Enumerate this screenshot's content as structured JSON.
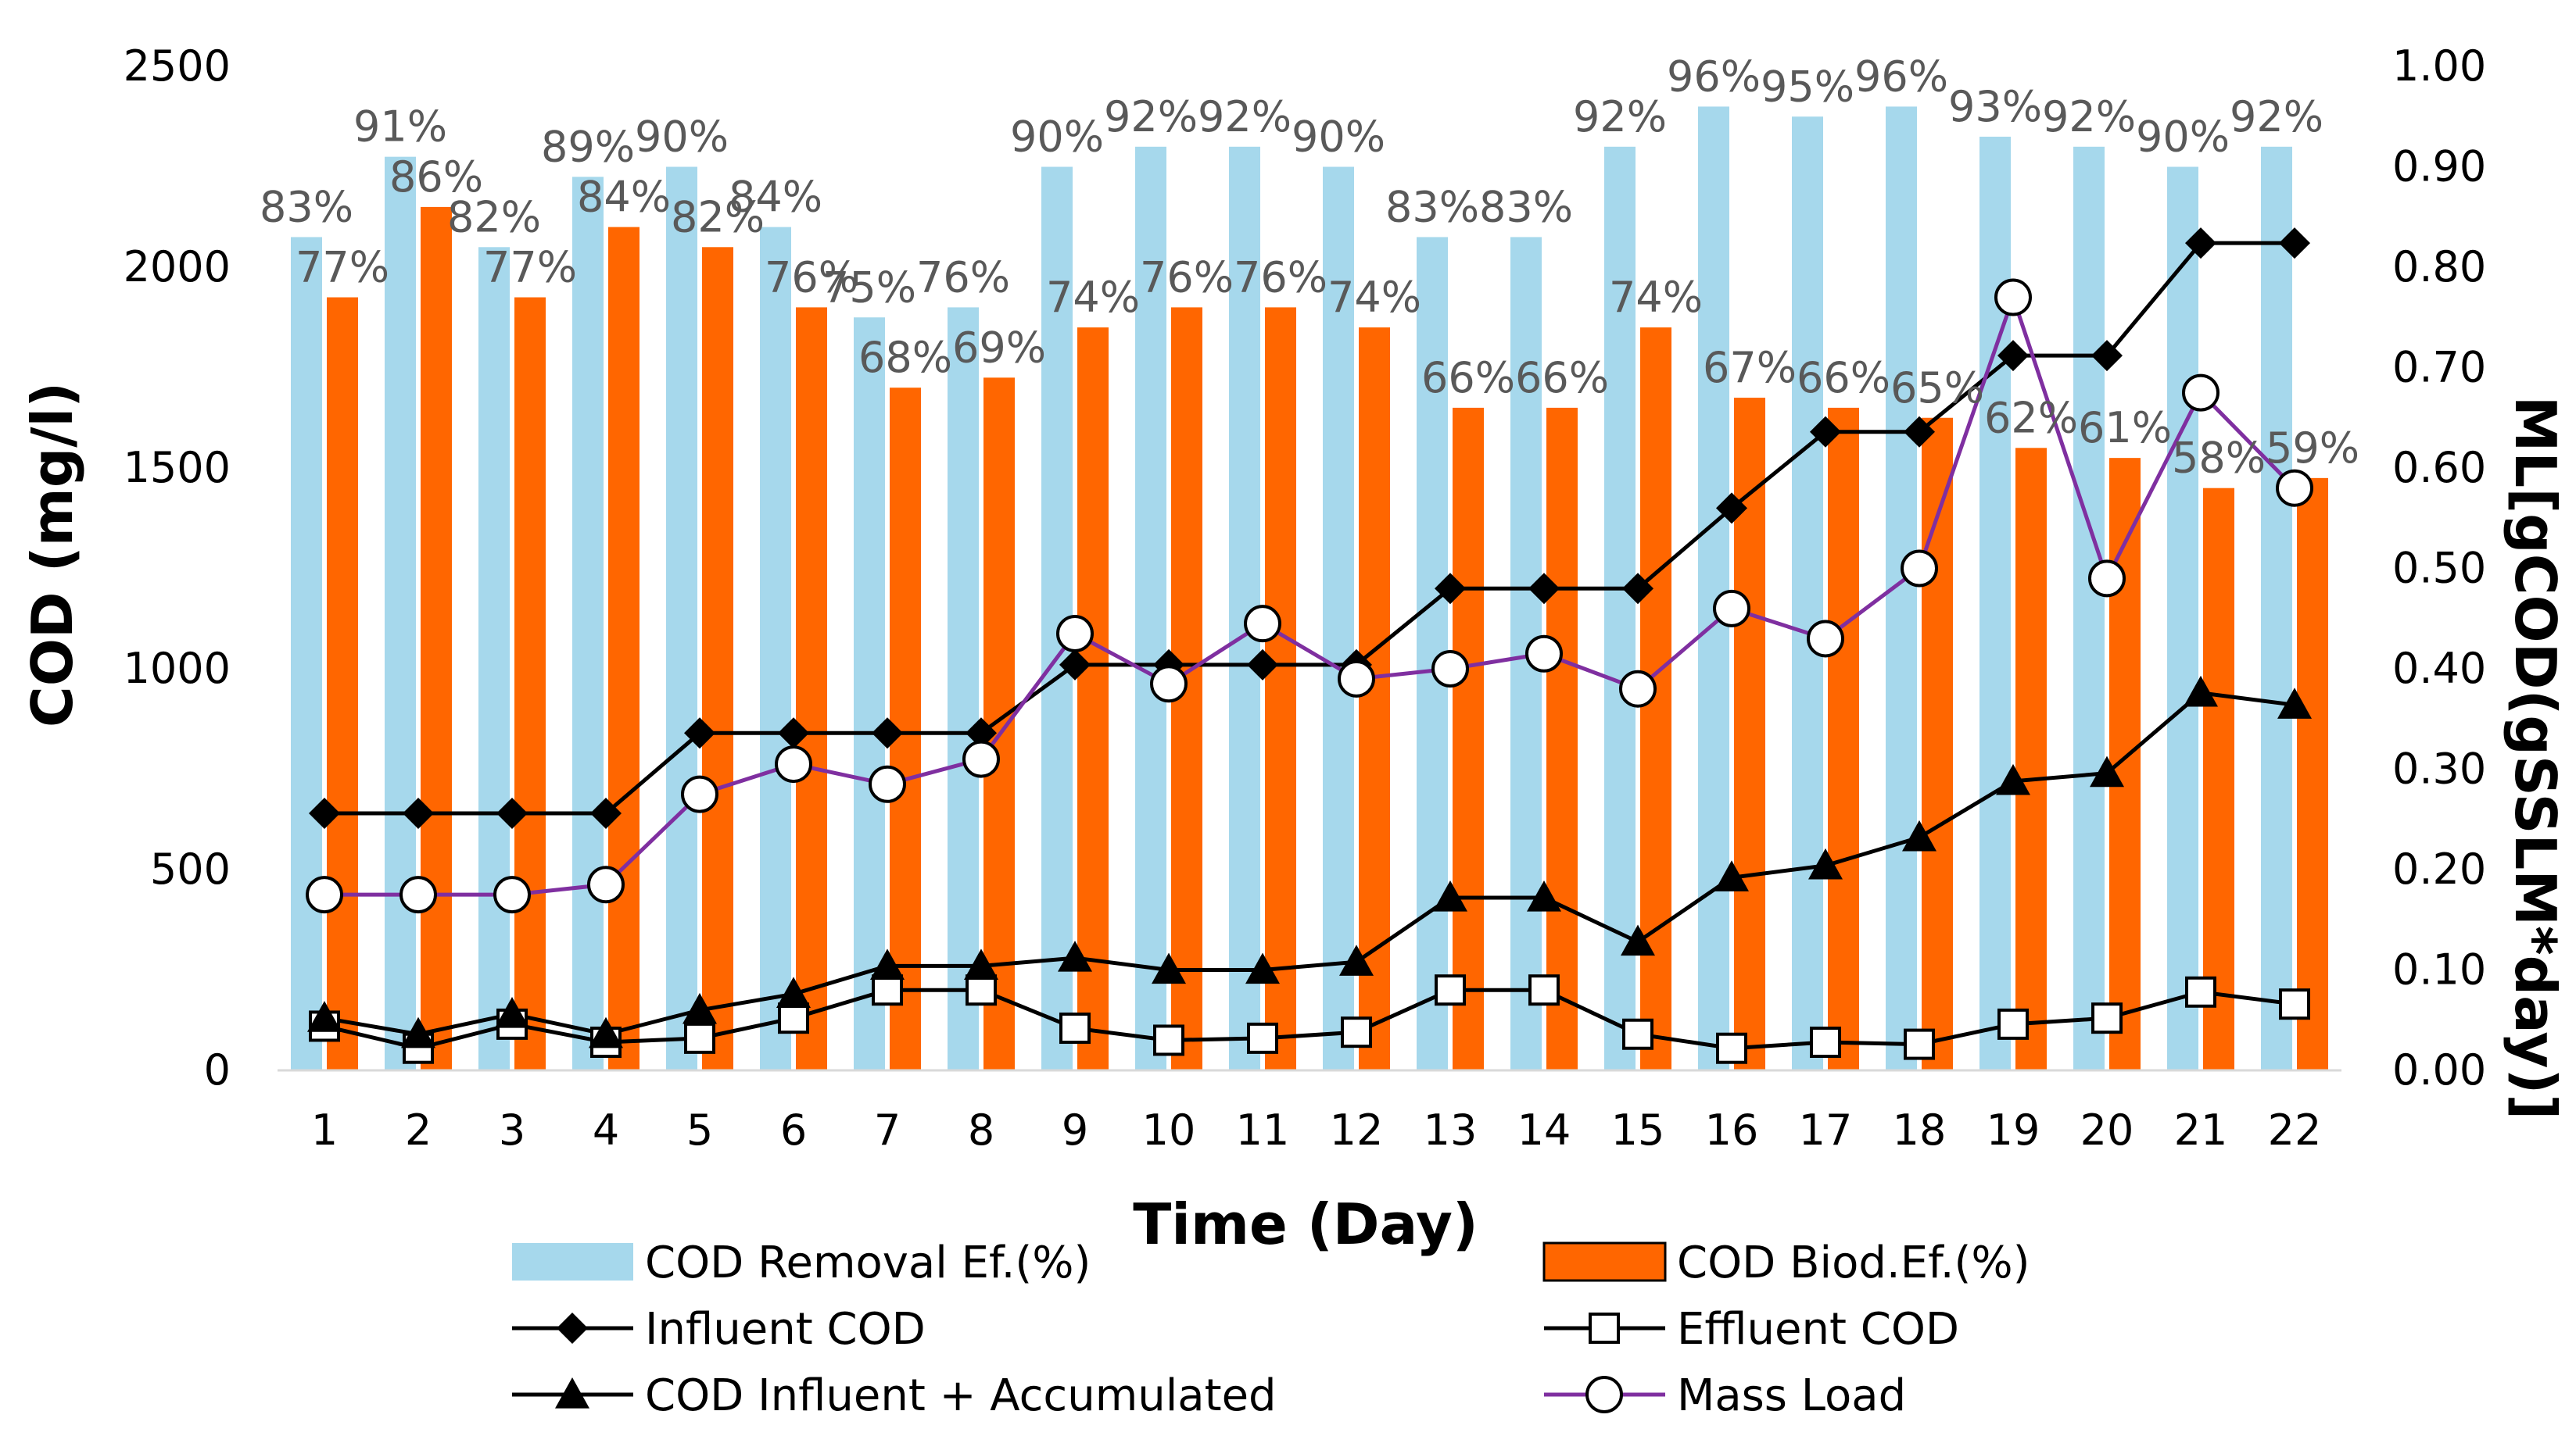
{
  "chart_data": {
    "type": "bar+line",
    "x": [
      "1",
      "2",
      "3",
      "4",
      "5",
      "6",
      "7",
      "8",
      "9",
      "10",
      "11",
      "12",
      "13",
      "14",
      "15",
      "16",
      "17",
      "18",
      "19",
      "20",
      "21",
      "22"
    ],
    "xlabel": "Time (Day)",
    "ylabel": "COD (mg/l)",
    "y2label": "ML[gCOD(gSSLM*day)]",
    "ylim": [
      0,
      2500
    ],
    "y2lim": [
      0,
      1.0
    ],
    "y_ticks": [
      "0",
      "500",
      "1000",
      "1500",
      "2000",
      "2500"
    ],
    "y2_ticks": [
      "0.00",
      "0.10",
      "0.20",
      "0.30",
      "0.40",
      "0.50",
      "0.60",
      "0.70",
      "0.80",
      "0.90",
      "1.00"
    ],
    "bar_series": [
      {
        "name": "COD Removal Ef.(%)",
        "color": "#A6D8EC",
        "values_pct": [
          83,
          91,
          82,
          89,
          90,
          84,
          75,
          76,
          90,
          92,
          92,
          90,
          83,
          83,
          92,
          96,
          95,
          96,
          93,
          92,
          90,
          92
        ],
        "labels": [
          "83%",
          "91%",
          "82%",
          "89%",
          "90%",
          "84%",
          "75%",
          "76%",
          "90%",
          "92%",
          "92%",
          "90%",
          "83%",
          "83%",
          "92%",
          "96%",
          "95%",
          "96%",
          "93%",
          "92%",
          "90%",
          "92%"
        ]
      },
      {
        "name": "COD Biod.Ef.(%)",
        "color": "#FF6600",
        "values_pct": [
          77,
          86,
          77,
          84,
          82,
          76,
          68,
          69,
          74,
          76,
          76,
          74,
          66,
          66,
          74,
          67,
          66,
          65,
          62,
          61,
          58,
          59
        ],
        "labels": [
          "77%",
          "86%",
          "77%",
          "84%",
          "82%",
          "76%",
          "68%",
          "69%",
          "74%",
          "76%",
          "76%",
          "74%",
          "66%",
          "66%",
          "74%",
          "67%",
          "66%",
          "65%",
          "62%",
          "61%",
          "58%",
          "59%"
        ]
      }
    ],
    "line_series": [
      {
        "name": "Influent COD",
        "axis": "left",
        "marker": "diamond",
        "color": "#000000",
        "values": [
          640,
          640,
          640,
          640,
          840,
          840,
          840,
          840,
          1010,
          1010,
          1010,
          1010,
          1200,
          1200,
          1200,
          1400,
          1590,
          1590,
          1780,
          1780,
          2060,
          2060
        ]
      },
      {
        "name": "Effluent COD",
        "axis": "left",
        "marker": "square",
        "color": "#000000",
        "values": [
          110,
          55,
          115,
          70,
          80,
          130,
          200,
          200,
          105,
          75,
          80,
          95,
          200,
          200,
          90,
          55,
          70,
          65,
          115,
          130,
          195,
          165
        ]
      },
      {
        "name": "COD Influent + Accumulated",
        "axis": "left",
        "marker": "triangle",
        "color": "#000000",
        "values": [
          130,
          90,
          140,
          90,
          150,
          190,
          260,
          260,
          280,
          250,
          250,
          270,
          430,
          430,
          320,
          480,
          510,
          580,
          720,
          740,
          940,
          910
        ]
      },
      {
        "name": "Mass Load",
        "axis": "right",
        "marker": "circle",
        "color": "#7F2FA0",
        "values": [
          0.175,
          0.175,
          0.175,
          0.185,
          0.275,
          0.305,
          0.285,
          0.31,
          0.435,
          0.385,
          0.445,
          0.39,
          0.4,
          0.415,
          0.38,
          0.46,
          0.43,
          0.5,
          0.77,
          0.49,
          0.675,
          0.58
        ]
      }
    ],
    "legend": [
      "COD Removal Ef.(%)",
      "COD Biod.Ef.(%)",
      "Influent COD",
      "Effluent COD",
      "COD Influent + Accumulated",
      "Mass Load"
    ],
    "legend_position": "bottom",
    "grid": false
  }
}
